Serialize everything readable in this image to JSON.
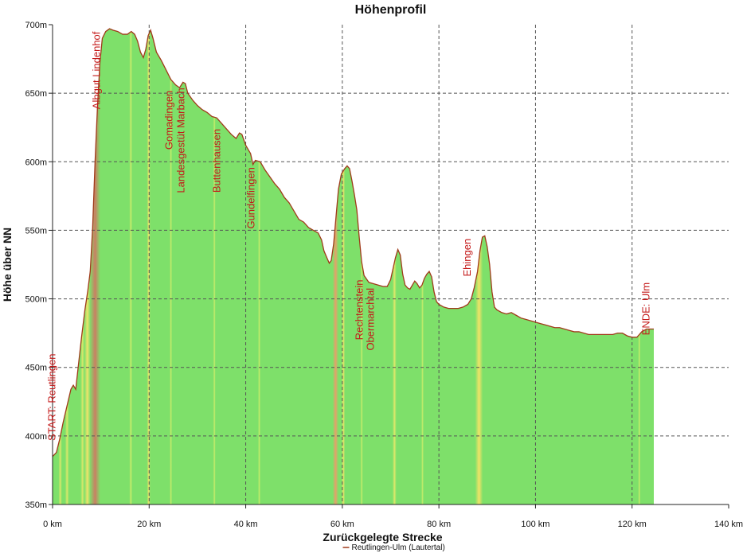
{
  "chart_data": {
    "type": "area",
    "title": "Höhenprofil",
    "xlabel": "Zurückgelegte Strecke",
    "ylabel": "Höhe über NN",
    "xlim": [
      0,
      140
    ],
    "ylim": [
      350,
      700
    ],
    "x_ticks": [
      {
        "value": 0,
        "label": "0 km"
      },
      {
        "value": 20,
        "label": "20 km"
      },
      {
        "value": 40,
        "label": "40 km"
      },
      {
        "value": 60,
        "label": "60 km"
      },
      {
        "value": 80,
        "label": "80 km"
      },
      {
        "value": 100,
        "label": "100 km"
      },
      {
        "value": 120,
        "label": "120 km"
      },
      {
        "value": 140,
        "label": "140 km"
      }
    ],
    "y_ticks": [
      {
        "value": 350,
        "label": "350m"
      },
      {
        "value": 400,
        "label": "400m"
      },
      {
        "value": 450,
        "label": "450m"
      },
      {
        "value": 500,
        "label": "500m"
      },
      {
        "value": 550,
        "label": "550m"
      },
      {
        "value": 600,
        "label": "600m"
      },
      {
        "value": 650,
        "label": "650m"
      },
      {
        "value": 700,
        "label": "700m"
      }
    ],
    "grid": true,
    "legend": {
      "position": "bottom-center",
      "entries": [
        "Reutlingen-Ulm (Lautertal)"
      ]
    },
    "series": [
      {
        "name": "Reutlingen-Ulm (Lautertal)",
        "color": "#a03a1a",
        "fill": "#7ee06a",
        "points": [
          [
            0,
            385
          ],
          [
            0.8,
            388
          ],
          [
            1.5,
            398
          ],
          [
            2.2,
            410
          ],
          [
            3,
            422
          ],
          [
            3.8,
            434
          ],
          [
            4.3,
            437
          ],
          [
            4.8,
            434
          ],
          [
            5.3,
            450
          ],
          [
            6,
            472
          ],
          [
            6.7,
            492
          ],
          [
            7.3,
            506
          ],
          [
            7.8,
            520
          ],
          [
            8.3,
            552
          ],
          [
            8.8,
            600
          ],
          [
            9.3,
            640
          ],
          [
            9.8,
            672
          ],
          [
            10.3,
            690
          ],
          [
            11,
            695
          ],
          [
            11.8,
            697
          ],
          [
            12.5,
            696
          ],
          [
            13.5,
            695
          ],
          [
            14.5,
            693
          ],
          [
            15.5,
            693
          ],
          [
            16.3,
            695
          ],
          [
            17,
            693
          ],
          [
            17.6,
            688
          ],
          [
            18.2,
            680
          ],
          [
            18.8,
            676
          ],
          [
            19.3,
            682
          ],
          [
            19.8,
            692
          ],
          [
            20.3,
            696
          ],
          [
            20.8,
            690
          ],
          [
            21.5,
            680
          ],
          [
            22.5,
            674
          ],
          [
            23.5,
            667
          ],
          [
            24.5,
            660
          ],
          [
            25.5,
            656
          ],
          [
            26.3,
            654
          ],
          [
            27,
            658
          ],
          [
            27.5,
            657
          ],
          [
            28,
            650
          ],
          [
            29,
            645
          ],
          [
            30,
            641
          ],
          [
            31,
            638
          ],
          [
            32,
            636
          ],
          [
            33,
            633
          ],
          [
            34,
            632
          ],
          [
            35,
            628
          ],
          [
            36,
            624
          ],
          [
            37,
            620
          ],
          [
            38,
            617
          ],
          [
            38.7,
            621
          ],
          [
            39.2,
            620
          ],
          [
            40,
            612
          ],
          [
            41,
            606
          ],
          [
            41.5,
            598
          ],
          [
            42,
            601
          ],
          [
            43,
            600
          ],
          [
            44,
            594
          ],
          [
            45,
            589
          ],
          [
            46,
            584
          ],
          [
            47,
            580
          ],
          [
            48,
            574
          ],
          [
            49,
            570
          ],
          [
            50,
            564
          ],
          [
            51,
            558
          ],
          [
            52,
            556
          ],
          [
            53,
            552
          ],
          [
            54,
            550
          ],
          [
            55,
            548
          ],
          [
            55.7,
            543
          ],
          [
            56.2,
            535
          ],
          [
            56.8,
            530
          ],
          [
            57.3,
            526
          ],
          [
            57.7,
            528
          ],
          [
            58.2,
            540
          ],
          [
            58.7,
            560
          ],
          [
            59.2,
            580
          ],
          [
            59.8,
            591
          ],
          [
            60.5,
            595
          ],
          [
            61,
            597
          ],
          [
            61.5,
            595
          ],
          [
            62,
            586
          ],
          [
            62.5,
            576
          ],
          [
            63,
            565
          ],
          [
            63.5,
            545
          ],
          [
            64,
            527
          ],
          [
            64.5,
            517
          ],
          [
            65.5,
            512
          ],
          [
            66.5,
            511
          ],
          [
            67.5,
            510
          ],
          [
            68.5,
            509
          ],
          [
            69.3,
            509
          ],
          [
            70,
            514
          ],
          [
            70.5,
            522
          ],
          [
            71,
            530
          ],
          [
            71.5,
            536
          ],
          [
            72,
            532
          ],
          [
            72.5,
            518
          ],
          [
            73,
            510
          ],
          [
            73.5,
            508
          ],
          [
            74,
            507
          ],
          [
            74.5,
            510
          ],
          [
            75,
            513
          ],
          [
            75.5,
            511
          ],
          [
            76,
            508
          ],
          [
            76.5,
            510
          ],
          [
            77,
            515
          ],
          [
            77.5,
            518
          ],
          [
            78,
            520
          ],
          [
            78.5,
            516
          ],
          [
            79,
            505
          ],
          [
            79.5,
            498
          ],
          [
            80,
            496
          ],
          [
            81,
            494
          ],
          [
            82,
            493
          ],
          [
            83,
            493
          ],
          [
            84,
            493
          ],
          [
            85,
            494
          ],
          [
            86,
            496
          ],
          [
            86.7,
            500
          ],
          [
            87.3,
            508
          ],
          [
            88,
            520
          ],
          [
            88.5,
            535
          ],
          [
            89,
            545
          ],
          [
            89.5,
            546
          ],
          [
            90,
            538
          ],
          [
            90.5,
            525
          ],
          [
            91,
            505
          ],
          [
            91.5,
            494
          ],
          [
            92,
            492
          ],
          [
            93,
            490
          ],
          [
            94,
            489
          ],
          [
            95,
            490
          ],
          [
            96,
            488
          ],
          [
            97,
            486
          ],
          [
            98,
            485
          ],
          [
            99,
            484
          ],
          [
            100,
            483
          ],
          [
            101,
            482
          ],
          [
            102,
            481
          ],
          [
            103,
            480
          ],
          [
            104,
            479
          ],
          [
            105,
            479
          ],
          [
            106,
            478
          ],
          [
            107,
            477
          ],
          [
            108,
            476
          ],
          [
            109,
            476
          ],
          [
            110,
            475
          ],
          [
            111,
            474
          ],
          [
            112,
            474
          ],
          [
            113,
            474
          ],
          [
            114,
            474
          ],
          [
            115,
            474
          ],
          [
            116,
            474
          ],
          [
            117,
            475
          ],
          [
            118,
            475
          ],
          [
            119,
            473
          ],
          [
            120,
            472
          ],
          [
            121,
            472
          ],
          [
            121.5,
            474
          ],
          [
            122,
            476
          ],
          [
            123,
            478
          ],
          [
            124,
            478
          ],
          [
            124.5,
            478
          ]
        ]
      }
    ],
    "gradient_bands": [
      {
        "center": 8.8,
        "width": 2.2,
        "color": "#c97f63"
      },
      {
        "center": 7.2,
        "width": 1.2,
        "color": "#efe36a"
      },
      {
        "center": 6.2,
        "width": 0.8,
        "color": "#d8e86a"
      },
      {
        "center": 3.0,
        "width": 0.8,
        "color": "#d8e86a"
      },
      {
        "center": 1.6,
        "width": 0.7,
        "color": "#d8e86a"
      },
      {
        "center": 19.9,
        "width": 0.7,
        "color": "#efe36a"
      },
      {
        "center": 16.2,
        "width": 0.6,
        "color": "#c8ec6a"
      },
      {
        "center": 24.5,
        "width": 0.5,
        "color": "#c8ec6a"
      },
      {
        "center": 33.5,
        "width": 0.5,
        "color": "#c8ec6a"
      },
      {
        "center": 42.8,
        "width": 0.5,
        "color": "#c8ec6a"
      },
      {
        "center": 58.6,
        "width": 1.2,
        "color": "#e6a06a"
      },
      {
        "center": 60.2,
        "width": 0.7,
        "color": "#efe36a"
      },
      {
        "center": 64.0,
        "width": 0.5,
        "color": "#c8ec6a"
      },
      {
        "center": 70.8,
        "width": 0.8,
        "color": "#e0e86a"
      },
      {
        "center": 76.6,
        "width": 0.5,
        "color": "#c8ec6a"
      },
      {
        "center": 88.3,
        "width": 1.6,
        "color": "#f2e266"
      },
      {
        "center": 121.5,
        "width": 0.5,
        "color": "#c8ec6a"
      }
    ],
    "annotations": [
      {
        "text": "START: Reutlingen",
        "x": 0.6,
        "y": 460,
        "color": "#c41919"
      },
      {
        "text": "Albgut Lindenhof",
        "x": 9.8,
        "y": 695,
        "color": "#c41919"
      },
      {
        "text": "Gomadingen",
        "x": 24.8,
        "y": 652,
        "color": "#a01a1a"
      },
      {
        "text": "Landesgestüt Marbach",
        "x": 27.3,
        "y": 654,
        "color": "#a01a1a"
      },
      {
        "text": "Buttenhausen",
        "x": 34.7,
        "y": 624,
        "color": "#a01a1a"
      },
      {
        "text": "Gundelfingen",
        "x": 41.8,
        "y": 596,
        "color": "#a01a1a"
      },
      {
        "text": "Rechtenstein",
        "x": 64.2,
        "y": 514,
        "color": "#a01a1a"
      },
      {
        "text": "Obermarchtal",
        "x": 66.5,
        "y": 508,
        "color": "#a01a1a"
      },
      {
        "text": "Ehingen",
        "x": 86.6,
        "y": 544,
        "color": "#c41919"
      },
      {
        "text": "ENDE: Ulm",
        "x": 123.6,
        "y": 512,
        "color": "#c41919"
      }
    ]
  }
}
